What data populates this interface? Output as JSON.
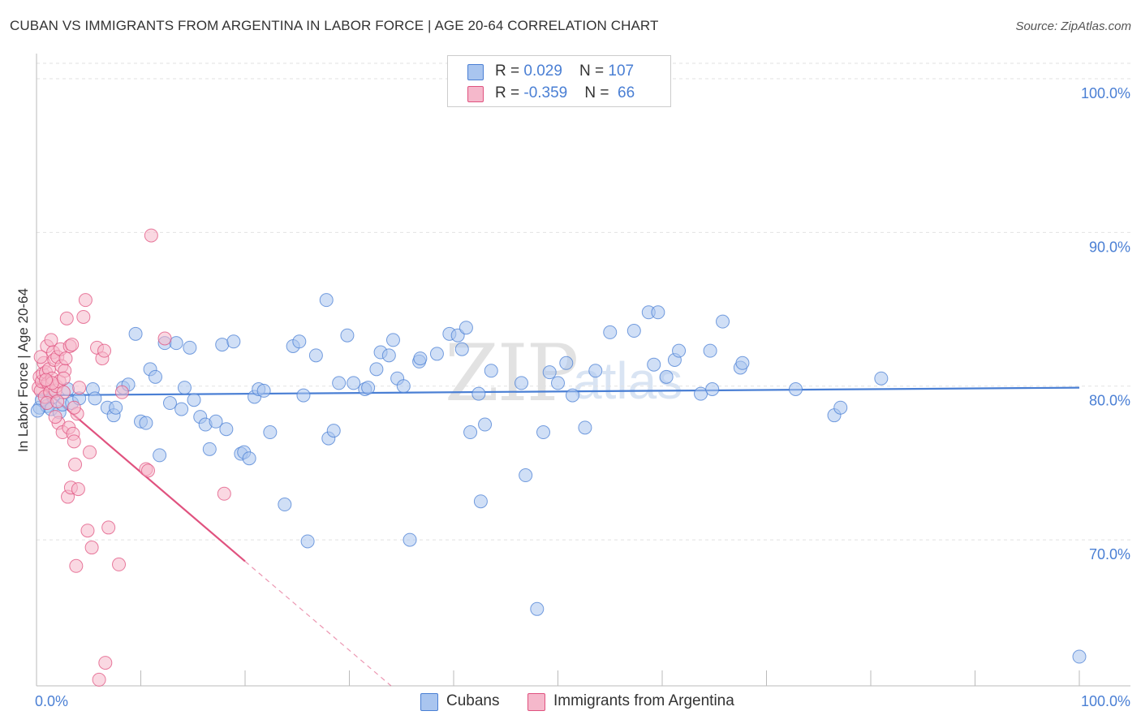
{
  "title": "CUBAN VS IMMIGRANTS FROM ARGENTINA IN LABOR FORCE | AGE 20-64 CORRELATION CHART",
  "source": "Source: ZipAtlas.com",
  "watermark": {
    "zip": "ZIP",
    "atlas": "atlas"
  },
  "legend": {
    "rows": [
      {
        "r_label": "R = ",
        "r_value": "0.029",
        "n_label": "N = ",
        "n_value": "107",
        "color": "#a9c5ef"
      },
      {
        "r_label": "R = ",
        "r_value": "-0.359",
        "n_label": "N = ",
        "n_value": " 66",
        "color": "#f5b8cb"
      }
    ]
  },
  "chart_data": {
    "type": "scatter",
    "title": "CUBAN VS IMMIGRANTS FROM ARGENTINA IN LABOR FORCE | AGE 20-64 CORRELATION CHART",
    "xlabel": "",
    "ylabel": "In Labor Force | Age 20-64",
    "xlim": [
      0,
      100
    ],
    "ylim": [
      60.5,
      101
    ],
    "x_tick_labels": [
      "0.0%",
      "100.0%"
    ],
    "y_ticks": [
      70,
      80,
      90,
      100
    ],
    "y_tick_labels": [
      "70.0%",
      "80.0%",
      "90.0%",
      "100.0%"
    ],
    "grid": true,
    "legend_position": "bottom",
    "series": [
      {
        "name": "Cubans",
        "color": "#4a7fd4",
        "fill": "#a9c5ef",
        "trend": {
          "x": [
            0,
            100
          ],
          "y": [
            79.4,
            79.9
          ]
        },
        "points": [
          [
            0.3,
            78.6
          ],
          [
            0.5,
            79.1
          ],
          [
            1.0,
            78.7
          ],
          [
            1.4,
            78.5
          ],
          [
            1.6,
            79.3
          ],
          [
            2.2,
            78.3
          ],
          [
            2.5,
            78.8
          ],
          [
            3.0,
            79.8
          ],
          [
            3.4,
            78.9
          ],
          [
            4.1,
            79.2
          ],
          [
            5.4,
            79.8
          ],
          [
            5.6,
            79.2
          ],
          [
            6.8,
            78.6
          ],
          [
            7.4,
            78.1
          ],
          [
            7.6,
            78.6
          ],
          [
            8.3,
            79.9
          ],
          [
            8.8,
            80.1
          ],
          [
            9.5,
            83.4
          ],
          [
            10.0,
            77.7
          ],
          [
            10.5,
            77.6
          ],
          [
            10.9,
            81.1
          ],
          [
            11.4,
            80.6
          ],
          [
            11.8,
            75.5
          ],
          [
            12.3,
            82.8
          ],
          [
            12.8,
            78.9
          ],
          [
            13.4,
            82.8
          ],
          [
            13.9,
            78.5
          ],
          [
            14.2,
            79.9
          ],
          [
            14.7,
            82.5
          ],
          [
            15.1,
            79.1
          ],
          [
            15.7,
            78.0
          ],
          [
            16.2,
            77.5
          ],
          [
            16.6,
            75.9
          ],
          [
            17.2,
            77.7
          ],
          [
            17.8,
            82.7
          ],
          [
            18.2,
            77.2
          ],
          [
            18.9,
            82.9
          ],
          [
            19.6,
            75.6
          ],
          [
            19.9,
            75.7
          ],
          [
            20.4,
            75.3
          ],
          [
            20.9,
            79.3
          ],
          [
            21.3,
            79.8
          ],
          [
            21.8,
            79.7
          ],
          [
            22.4,
            77.0
          ],
          [
            23.8,
            72.3
          ],
          [
            24.6,
            82.6
          ],
          [
            25.2,
            82.9
          ],
          [
            25.6,
            79.4
          ],
          [
            26.0,
            69.9
          ],
          [
            26.8,
            82.0
          ],
          [
            27.8,
            85.6
          ],
          [
            28.0,
            76.6
          ],
          [
            28.5,
            77.1
          ],
          [
            29.0,
            80.2
          ],
          [
            29.8,
            83.3
          ],
          [
            30.4,
            80.2
          ],
          [
            31.5,
            79.8
          ],
          [
            31.8,
            79.9
          ],
          [
            32.6,
            81.1
          ],
          [
            33.0,
            82.2
          ],
          [
            33.8,
            82.0
          ],
          [
            34.2,
            83.0
          ],
          [
            34.6,
            80.5
          ],
          [
            35.2,
            80.0
          ],
          [
            35.8,
            70.0
          ],
          [
            36.7,
            81.6
          ],
          [
            36.8,
            81.8
          ],
          [
            38.4,
            82.1
          ],
          [
            39.6,
            83.4
          ],
          [
            40.4,
            83.3
          ],
          [
            40.8,
            82.4
          ],
          [
            41.2,
            83.8
          ],
          [
            41.6,
            77.0
          ],
          [
            42.4,
            79.5
          ],
          [
            42.6,
            72.5
          ],
          [
            43.0,
            77.5
          ],
          [
            43.6,
            81.0
          ],
          [
            46.5,
            80.2
          ],
          [
            46.9,
            74.2
          ],
          [
            48.0,
            65.5
          ],
          [
            48.6,
            77.0
          ],
          [
            49.2,
            80.9
          ],
          [
            50.0,
            80.2
          ],
          [
            50.8,
            81.5
          ],
          [
            51.4,
            79.4
          ],
          [
            52.6,
            77.3
          ],
          [
            53.6,
            81.0
          ],
          [
            55.0,
            83.5
          ],
          [
            57.3,
            83.6
          ],
          [
            58.7,
            84.8
          ],
          [
            59.2,
            81.4
          ],
          [
            59.6,
            84.8
          ],
          [
            60.4,
            80.6
          ],
          [
            61.2,
            81.7
          ],
          [
            61.6,
            82.3
          ],
          [
            63.7,
            79.5
          ],
          [
            64.6,
            82.3
          ],
          [
            64.8,
            79.8
          ],
          [
            65.8,
            84.2
          ],
          [
            67.5,
            81.2
          ],
          [
            67.7,
            81.5
          ],
          [
            72.8,
            79.8
          ],
          [
            76.5,
            78.1
          ],
          [
            77.1,
            78.6
          ],
          [
            81.0,
            80.5
          ],
          [
            100.0,
            62.4
          ],
          [
            0.1,
            78.4
          ]
        ]
      },
      {
        "name": "Immigrants from Argentina",
        "color": "#e0527f",
        "fill": "#f5b8cb",
        "trend": {
          "x": [
            0,
            20
          ],
          "y": [
            80.2,
            68.6
          ]
        },
        "trend_dashed": {
          "x": [
            20,
            34
          ],
          "y": [
            68.6,
            60.5
          ]
        },
        "points": [
          [
            0.2,
            79.9
          ],
          [
            0.3,
            80.6
          ],
          [
            0.4,
            79.7
          ],
          [
            0.5,
            80.3
          ],
          [
            0.6,
            80.8
          ],
          [
            0.7,
            81.5
          ],
          [
            0.8,
            79.3
          ],
          [
            0.9,
            80.9
          ],
          [
            1.0,
            82.6
          ],
          [
            1.1,
            80.2
          ],
          [
            1.2,
            81.1
          ],
          [
            1.3,
            79.6
          ],
          [
            1.4,
            83.0
          ],
          [
            1.5,
            80.5
          ],
          [
            1.6,
            82.2
          ],
          [
            1.7,
            81.7
          ],
          [
            1.8,
            79.7
          ],
          [
            1.9,
            80.0
          ],
          [
            2.0,
            81.9
          ],
          [
            2.1,
            77.6
          ],
          [
            2.2,
            80.3
          ],
          [
            2.3,
            82.4
          ],
          [
            2.4,
            81.3
          ],
          [
            2.5,
            77.0
          ],
          [
            2.6,
            79.6
          ],
          [
            2.7,
            81.0
          ],
          [
            2.8,
            81.8
          ],
          [
            2.9,
            84.4
          ],
          [
            3.0,
            72.8
          ],
          [
            3.1,
            77.3
          ],
          [
            3.2,
            82.6
          ],
          [
            3.3,
            73.4
          ],
          [
            3.4,
            82.7
          ],
          [
            3.5,
            76.9
          ],
          [
            3.6,
            76.4
          ],
          [
            3.7,
            74.9
          ],
          [
            3.8,
            68.3
          ],
          [
            3.9,
            78.2
          ],
          [
            4.0,
            73.3
          ],
          [
            4.1,
            79.9
          ],
          [
            4.5,
            84.5
          ],
          [
            4.7,
            85.6
          ],
          [
            4.9,
            70.6
          ],
          [
            5.1,
            75.7
          ],
          [
            5.3,
            69.5
          ],
          [
            5.8,
            82.5
          ],
          [
            6.0,
            60.9
          ],
          [
            6.3,
            81.8
          ],
          [
            6.5,
            82.3
          ],
          [
            6.6,
            62.0
          ],
          [
            6.9,
            70.8
          ],
          [
            7.9,
            68.4
          ],
          [
            8.2,
            79.6
          ],
          [
            10.5,
            74.6
          ],
          [
            10.7,
            74.5
          ],
          [
            11.0,
            89.8
          ],
          [
            12.3,
            83.1
          ],
          [
            18.0,
            73.0
          ],
          [
            1.0,
            78.9
          ],
          [
            1.5,
            80.2
          ],
          [
            0.4,
            81.9
          ],
          [
            2.0,
            79.0
          ],
          [
            3.6,
            78.6
          ],
          [
            0.9,
            80.4
          ],
          [
            1.8,
            78.0
          ],
          [
            2.6,
            80.5
          ]
        ]
      }
    ]
  },
  "bottom_legend": [
    {
      "label": "Cubans",
      "color": "#a9c5ef"
    },
    {
      "label": "Immigrants from Argentina",
      "color": "#f5b8cb"
    }
  ]
}
